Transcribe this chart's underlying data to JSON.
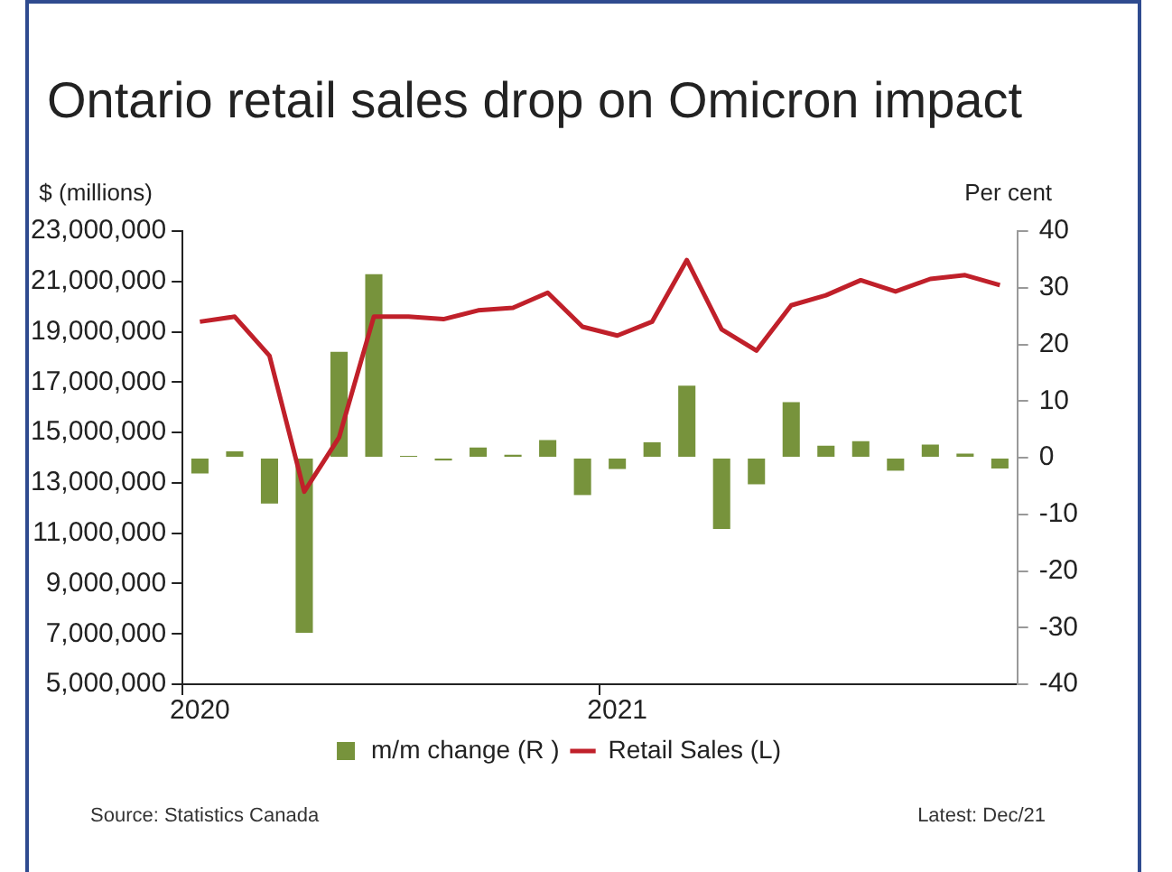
{
  "chart_data": {
    "type": "bar",
    "title": "Ontario retail sales drop on Omicron impact",
    "ylabel": "$ (millions)",
    "y2label": "Per cent",
    "categories": [
      "2020",
      null,
      null,
      null,
      null,
      null,
      null,
      null,
      null,
      null,
      null,
      null,
      "2021",
      null,
      null,
      null,
      null,
      null,
      null,
      null,
      null,
      null,
      null,
      null
    ],
    "series": [
      {
        "name": "m/m change (R )",
        "axis": "y2",
        "color": "#77933c",
        "values": [
          -2.8,
          1.1,
          -8.1,
          -30.9,
          18.7,
          32.4,
          0.3,
          -0.5,
          1.8,
          0.5,
          3.1,
          -6.6,
          -2.0,
          2.7,
          12.7,
          -12.6,
          -4.7,
          9.8,
          2.1,
          2.9,
          -2.3,
          2.3,
          0.7,
          -1.9
        ]
      },
      {
        "name": "Retail Sales (L)",
        "type": "line",
        "color": "#c0202a",
        "values": [
          19400000,
          19600000,
          18050000,
          12650000,
          14800000,
          19600000,
          19600000,
          19500000,
          19850000,
          19950000,
          20550000,
          19200000,
          18850000,
          19400000,
          21850000,
          19100000,
          18250000,
          20050000,
          20450000,
          21050000,
          20600000,
          21100000,
          21250000,
          20850000
        ]
      }
    ],
    "ylim": [
      5000000,
      23000000
    ],
    "yticks": [
      {
        "value": 5000000,
        "label": "5,000,000"
      },
      {
        "value": 7000000,
        "label": "7,000,000"
      },
      {
        "value": 9000000,
        "label": "9,000,000"
      },
      {
        "value": 11000000,
        "label": "11,000,000"
      },
      {
        "value": 13000000,
        "label": "13,000,000"
      },
      {
        "value": 15000000,
        "label": "15,000,000"
      },
      {
        "value": 17000000,
        "label": "17,000,000"
      },
      {
        "value": 19000000,
        "label": "19,000,000"
      },
      {
        "value": 21000000,
        "label": "21,000,000"
      },
      {
        "value": 23000000,
        "label": "23,000,000"
      }
    ],
    "y2lim": [
      -40,
      40
    ],
    "y2ticks": [
      -40,
      -30,
      -20,
      -10,
      0,
      10,
      20,
      30,
      40
    ],
    "grid": false,
    "legend": "bottom",
    "marker": "none",
    "line_style": "solid",
    "annotations": [
      "Source: Statistics Canada",
      "Latest: Dec/21"
    ]
  }
}
